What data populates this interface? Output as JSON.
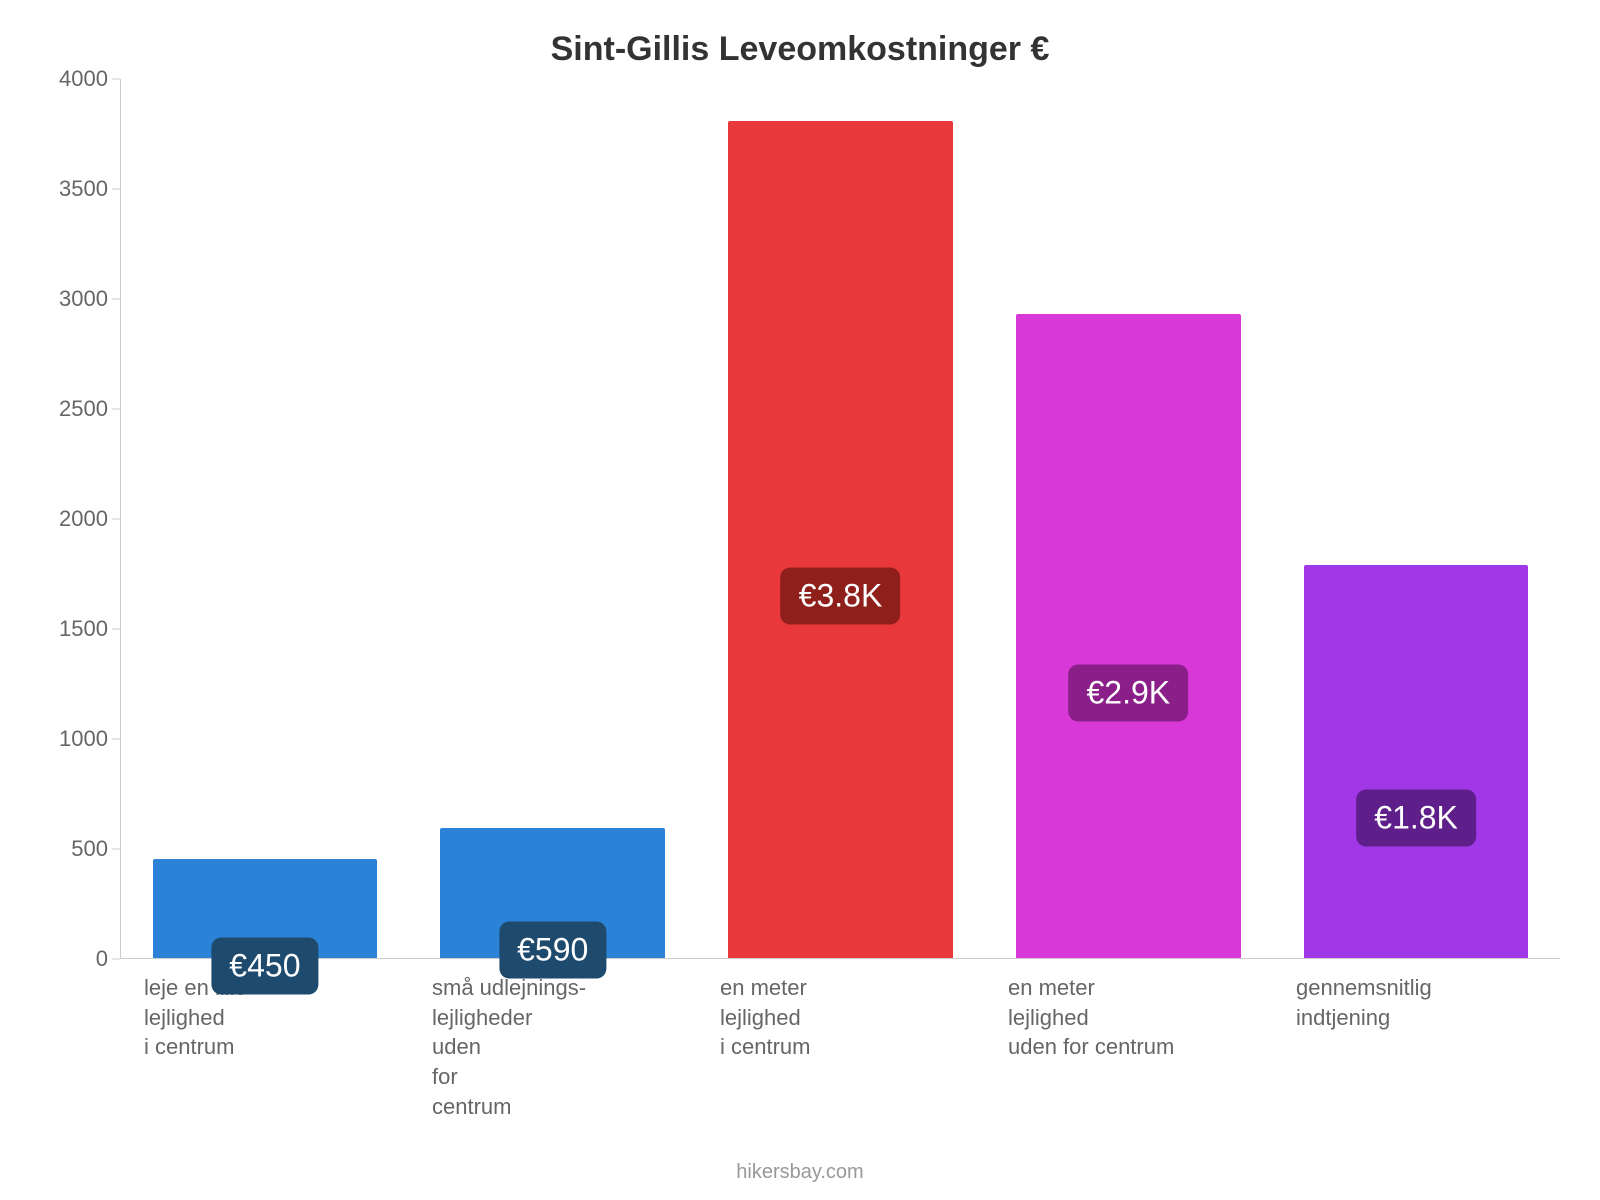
{
  "chart": {
    "type": "bar",
    "title": "Sint-Gillis Leveomkostninger €",
    "title_fontsize": 34,
    "title_color": "#333333",
    "background_color": "#ffffff",
    "axis_color": "#cccccc",
    "tick_label_color": "#666666",
    "tick_label_fontsize": 22,
    "y": {
      "min": 0,
      "max": 4000,
      "step": 500,
      "ticks": [
        {
          "value": 0,
          "label": "0"
        },
        {
          "value": 500,
          "label": "500"
        },
        {
          "value": 1000,
          "label": "1000"
        },
        {
          "value": 1500,
          "label": "1500"
        },
        {
          "value": 2000,
          "label": "2000"
        },
        {
          "value": 2500,
          "label": "2500"
        },
        {
          "value": 3000,
          "label": "3000"
        },
        {
          "value": 3500,
          "label": "3500"
        },
        {
          "value": 4000,
          "label": "4000"
        }
      ]
    },
    "bar_width_ratio": 0.78,
    "bars": [
      {
        "category_lines": [
          "leje en lille lejlighed",
          "i centrum"
        ],
        "value": 450,
        "value_label": "€450",
        "bar_color": "#2c82d6",
        "label_bg": "#1e4a6d",
        "label_text_color": "#ffffff"
      },
      {
        "category_lines": [
          "små udlejnings-lejligheder",
          "uden",
          "for",
          "centrum"
        ],
        "value": 590,
        "value_label": "€590",
        "bar_color": "#2c82d6",
        "label_bg": "#1e4a6d",
        "label_text_color": "#ffffff"
      },
      {
        "category_lines": [
          "en meter lejlighed",
          "i centrum"
        ],
        "value": 3810,
        "value_label": "€3.8K",
        "bar_color": "#e8383b",
        "label_bg": "#8f1f1a",
        "label_text_color": "#ffffff"
      },
      {
        "category_lines": [
          "en meter lejlighed",
          "uden for centrum"
        ],
        "value": 2930,
        "value_label": "€2.9K",
        "bar_color": "#d838d8",
        "label_bg": "#8a1f8a",
        "label_text_color": "#ffffff"
      },
      {
        "category_lines": [
          "gennemsnitlig",
          "indtjening"
        ],
        "value": 1790,
        "value_label": "€1.8K",
        "bar_color": "#a038e8",
        "label_bg": "#5f1f8a",
        "label_text_color": "#ffffff"
      }
    ],
    "data_label_fontsize": 32,
    "data_label_radius": 10,
    "attribution": "hikersbay.com",
    "attribution_color": "#999999",
    "attribution_fontsize": 20
  }
}
